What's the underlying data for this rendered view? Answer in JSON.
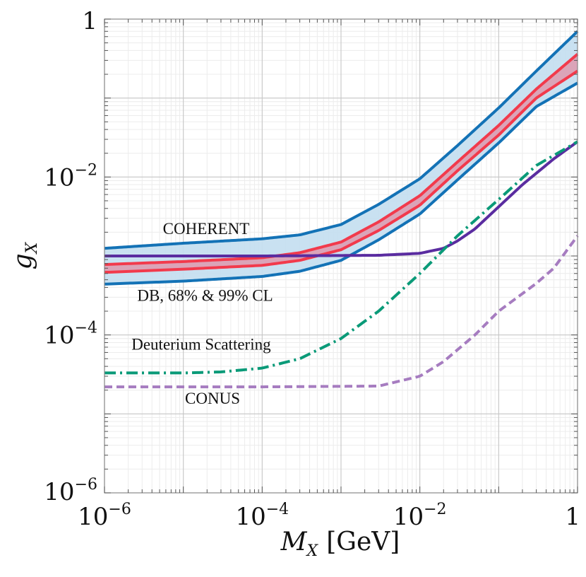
{
  "chart_data": {
    "type": "line",
    "title": "",
    "xlabel": "M_X [GeV]",
    "ylabel": "g_X",
    "xlabel_parts": {
      "var": "M",
      "sub": "X",
      "unit": "[GeV]"
    },
    "ylabel_parts": {
      "var": "g",
      "sub": "X"
    },
    "xscale": "log",
    "yscale": "log",
    "xlim": [
      1e-06,
      1
    ],
    "ylim": [
      1e-06,
      1
    ],
    "grid": true,
    "x_ticks": [
      {
        "value": 1e-06,
        "base": "10",
        "exp": "−6"
      },
      {
        "value": 0.0001,
        "base": "10",
        "exp": "−4"
      },
      {
        "value": 0.01,
        "base": "10",
        "exp": "−2"
      },
      {
        "value": 1,
        "base": "1",
        "exp": ""
      }
    ],
    "y_ticks": [
      {
        "value": 1e-06,
        "base": "10",
        "exp": "−6"
      },
      {
        "value": 0.0001,
        "base": "10",
        "exp": "−4"
      },
      {
        "value": 0.01,
        "base": "10",
        "exp": "−2"
      },
      {
        "value": 1,
        "base": "1",
        "exp": ""
      }
    ],
    "bands": [
      {
        "name": "DB 99% CL band",
        "color": "#c6dff0",
        "lower": "DB 99% CL lower",
        "upper": "COHERENT"
      },
      {
        "name": "DB 68% CL band",
        "color": "#dca0b4",
        "lower": "DB 68% CL lower",
        "upper": "DB 68% CL upper"
      }
    ],
    "series": [
      {
        "name": "COHERENT",
        "color": "#1372b6",
        "style": "solid",
        "width": 4,
        "x": [
          1e-06,
          1e-05,
          0.0001,
          0.0003,
          0.001,
          0.003,
          0.01,
          0.03,
          0.1,
          0.3,
          1
        ],
        "y": [
          0.00125,
          0.00145,
          0.00165,
          0.00185,
          0.0025,
          0.0045,
          0.0095,
          0.025,
          0.075,
          0.22,
          0.7
        ]
      },
      {
        "name": "DB 68% CL upper",
        "color": "#f23a4c",
        "style": "solid",
        "width": 4,
        "x": [
          1e-06,
          1e-05,
          0.0001,
          0.0003,
          0.001,
          0.003,
          0.01,
          0.03,
          0.1,
          0.3,
          1
        ],
        "y": [
          0.00078,
          0.00085,
          0.00095,
          0.0011,
          0.0015,
          0.0027,
          0.0058,
          0.0155,
          0.045,
          0.13,
          0.36
        ]
      },
      {
        "name": "DB 68% CL lower",
        "color": "#f23a4c",
        "style": "solid",
        "width": 4,
        "x": [
          1e-06,
          1e-05,
          0.0001,
          0.0003,
          0.001,
          0.003,
          0.01,
          0.03,
          0.1,
          0.3,
          1
        ],
        "y": [
          0.00062,
          0.00068,
          0.00076,
          0.00088,
          0.0012,
          0.0021,
          0.0044,
          0.012,
          0.034,
          0.1,
          0.22
        ]
      },
      {
        "name": "DB 99% CL lower",
        "color": "#1372b6",
        "style": "solid",
        "width": 4,
        "x": [
          1e-06,
          1e-05,
          0.0001,
          0.0003,
          0.001,
          0.003,
          0.01,
          0.03,
          0.1,
          0.3,
          1
        ],
        "y": [
          0.00044,
          0.00048,
          0.00055,
          0.00064,
          0.00088,
          0.0016,
          0.0034,
          0.0092,
          0.027,
          0.078,
          0.155
        ]
      },
      {
        "name": "Dark purple",
        "color": "#5a2ca0",
        "style": "solid",
        "width": 4,
        "x": [
          1e-06,
          0.0001,
          0.003,
          0.01,
          0.02,
          0.03,
          0.05,
          0.1,
          0.2,
          0.5,
          1
        ],
        "y": [
          0.001,
          0.001,
          0.00102,
          0.00108,
          0.00125,
          0.00155,
          0.0022,
          0.0042,
          0.008,
          0.017,
          0.028
        ]
      },
      {
        "name": "Deuterium Scattering",
        "color": "#0a9a78",
        "style": "dashdot",
        "width": 4,
        "x": [
          1e-06,
          1e-05,
          3e-05,
          0.0001,
          0.0003,
          0.001,
          0.003,
          0.01,
          0.03,
          0.1,
          0.3,
          1
        ],
        "y": [
          3.3e-05,
          3.3e-05,
          3.4e-05,
          3.8e-05,
          5e-05,
          9e-05,
          0.0002,
          0.0006,
          0.0018,
          0.0052,
          0.014,
          0.028
        ]
      },
      {
        "name": "CONUS",
        "color": "#a67cc0",
        "style": "dashed",
        "width": 4,
        "x": [
          1e-06,
          1e-05,
          0.0001,
          0.003,
          0.01,
          0.02,
          0.05,
          0.1,
          0.3,
          0.5,
          1
        ],
        "y": [
          2.2e-05,
          2.2e-05,
          2.2e-05,
          2.25e-05,
          3e-05,
          4.6e-05,
          0.0001,
          0.0002,
          0.00045,
          0.0007,
          0.0018
        ]
      }
    ],
    "annotations": [
      {
        "text": "COHERENT",
        "x": 5.5e-06,
        "y": 0.0019
      },
      {
        "text": "DB, 68% & 99% CL",
        "x": 2.6e-06,
        "y": 0.00027
      },
      {
        "text": "Deuterium Scattering",
        "x": 2.2e-06,
        "y": 6.5e-05
      },
      {
        "text": "CONUS",
        "x": 1.05e-05,
        "y": 1.35e-05
      }
    ]
  }
}
